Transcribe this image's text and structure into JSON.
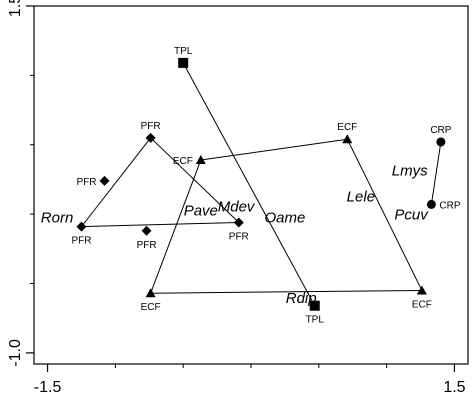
{
  "chart_data": {
    "type": "scatter",
    "title": "",
    "xlabel": "",
    "ylabel": "",
    "xlim": [
      -1.6,
      1.6
    ],
    "ylim": [
      -1.08,
      1.5
    ],
    "x_ticks": [
      {
        "value": -1.5,
        "label": "-1.5"
      },
      {
        "value": 1.5,
        "label": "1.5"
      }
    ],
    "y_ticks": [
      {
        "value": 1.5,
        "label": "1.5"
      },
      {
        "value": -1.0,
        "label": "-1.0"
      }
    ],
    "y_minor_ticks": [
      1.0,
      0.5,
      0.0,
      -0.5
    ],
    "x_minor_ticks": [
      -1.0,
      -0.5,
      0.0,
      0.5,
      1.0
    ],
    "points": [
      {
        "id": "tpl1",
        "x": -0.5,
        "y": 1.09,
        "marker": "square",
        "label": "TPL",
        "label_pos": "above"
      },
      {
        "id": "tpl2",
        "x": 0.47,
        "y": -0.66,
        "marker": "square",
        "label": "TPL",
        "label_pos": "below"
      },
      {
        "id": "pfr1",
        "x": -0.74,
        "y": 0.55,
        "marker": "diamond",
        "label": "PFR",
        "label_pos": "above"
      },
      {
        "id": "pfr2",
        "x": -1.08,
        "y": 0.24,
        "marker": "diamond",
        "label": "PFR",
        "label_pos": "left"
      },
      {
        "id": "pfr3",
        "x": -1.25,
        "y": -0.09,
        "marker": "diamond",
        "label": "PFR",
        "label_pos": "below"
      },
      {
        "id": "pfr4",
        "x": -0.77,
        "y": -0.12,
        "marker": "diamond",
        "label": "PFR",
        "label_pos": "below"
      },
      {
        "id": "pfr5",
        "x": -0.09,
        "y": -0.06,
        "marker": "diamond",
        "label": "PFR",
        "label_pos": "below"
      },
      {
        "id": "ecf1",
        "x": 0.71,
        "y": 0.54,
        "marker": "triangle",
        "label": "ECF",
        "label_pos": "above"
      },
      {
        "id": "ecf2",
        "x": -0.37,
        "y": 0.39,
        "marker": "triangle",
        "label": "ECF",
        "label_pos": "left"
      },
      {
        "id": "ecf3",
        "x": -0.74,
        "y": -0.57,
        "marker": "triangle",
        "label": "ECF",
        "label_pos": "below"
      },
      {
        "id": "ecf4",
        "x": 1.26,
        "y": -0.55,
        "marker": "triangle",
        "label": "ECF",
        "label_pos": "below"
      },
      {
        "id": "crp1",
        "x": 1.4,
        "y": 0.52,
        "marker": "circle",
        "label": "CRP",
        "label_pos": "above"
      },
      {
        "id": "crp2",
        "x": 1.33,
        "y": 0.07,
        "marker": "circle",
        "label": "CRP",
        "label_pos": "right"
      }
    ],
    "connections": [
      [
        "tpl1",
        "tpl2"
      ],
      [
        "pfr1",
        "pfr3"
      ],
      [
        "pfr1",
        "pfr5"
      ],
      [
        "pfr3",
        "pfr5"
      ],
      [
        "ecf1",
        "ecf2"
      ],
      [
        "ecf1",
        "ecf4"
      ],
      [
        "ecf2",
        "ecf3"
      ],
      [
        "ecf3",
        "ecf4"
      ],
      [
        "crp1",
        "crp2"
      ]
    ],
    "species": [
      {
        "label": "Lmys",
        "x": 1.17,
        "y": 0.28
      },
      {
        "label": "Lele",
        "x": 0.81,
        "y": 0.09
      },
      {
        "label": "Pcuv",
        "x": 1.18,
        "y": -0.04
      },
      {
        "label": "Pave",
        "x": -0.37,
        "y": -0.01
      },
      {
        "label": "Mdev",
        "x": -0.11,
        "y": 0.02
      },
      {
        "label": "Oame",
        "x": 0.25,
        "y": -0.06
      },
      {
        "label": "Rorn",
        "x": -1.43,
        "y": -0.06
      },
      {
        "label": "Rdip",
        "x": 0.37,
        "y": -0.64
      }
    ]
  }
}
